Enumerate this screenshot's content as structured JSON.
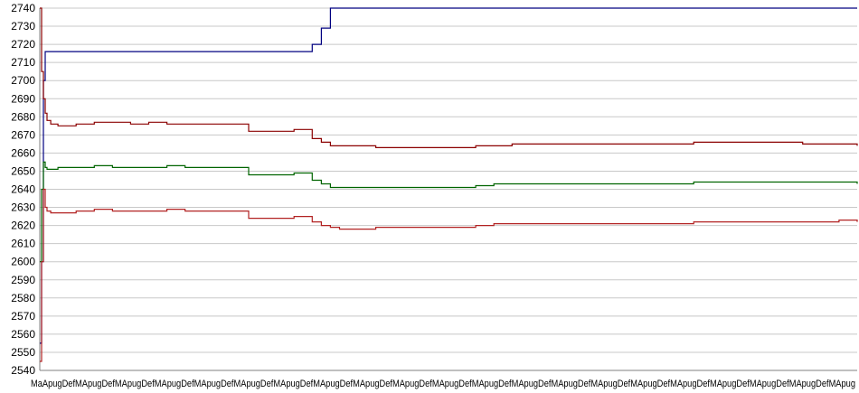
{
  "chart_data": {
    "type": "line",
    "title": "",
    "xlabel": "",
    "ylabel": "",
    "ylim": [
      2540,
      2740
    ],
    "yticks": [
      2540,
      2550,
      2560,
      2570,
      2580,
      2590,
      2600,
      2610,
      2620,
      2630,
      2640,
      2650,
      2660,
      2670,
      2680,
      2690,
      2700,
      2710,
      2720,
      2730,
      2740
    ],
    "grid": "horizontal",
    "legend": "none",
    "xtick_text": "MaApugDefMApugDefMApugDefMApugDefMApugDefMApugDefMApugDefMApugDefMApugDefMApugDefMApugDefMApugDefMApugDefMApugDefMApugDefMApugDefMApugDefMApugDefMApugDefMApugDefMApug",
    "x": [
      0,
      2,
      4,
      6,
      8,
      12,
      20,
      40,
      60,
      80,
      100,
      120,
      140,
      160,
      180,
      200,
      230,
      260,
      280,
      300,
      310,
      320,
      330,
      350,
      370,
      380,
      400,
      430,
      460,
      480,
      500,
      520,
      560,
      600,
      640,
      680,
      720,
      760,
      800,
      840,
      880,
      900
    ],
    "series": [
      {
        "color": "#000080",
        "values": [
          2555,
          2600,
          2700,
          2716,
          2716,
          2716,
          2716,
          2716,
          2716,
          2716,
          2716,
          2716,
          2716,
          2716,
          2716,
          2716,
          2716,
          2716,
          2716,
          2720,
          2729,
          2740,
          2740,
          2740,
          2740,
          2740,
          2740,
          2740,
          2740,
          2740,
          2740,
          2740,
          2740,
          2740,
          2740,
          2740,
          2740,
          2740,
          2740,
          2740,
          2740,
          2740
        ]
      },
      {
        "color": "#8B0000",
        "values": [
          2740,
          2705,
          2690,
          2682,
          2678,
          2676,
          2675,
          2676,
          2677,
          2677,
          2676,
          2677,
          2676,
          2676,
          2676,
          2676,
          2672,
          2672,
          2673,
          2668,
          2666,
          2664,
          2664,
          2664,
          2663,
          2663,
          2663,
          2663,
          2663,
          2664,
          2664,
          2665,
          2665,
          2665,
          2665,
          2665,
          2666,
          2666,
          2666,
          2665,
          2665,
          2664
        ]
      },
      {
        "color": "#006400",
        "values": [
          2600,
          2640,
          2655,
          2652,
          2651,
          2651,
          2652,
          2652,
          2653,
          2652,
          2652,
          2652,
          2653,
          2652,
          2652,
          2652,
          2648,
          2648,
          2649,
          2645,
          2643,
          2641,
          2641,
          2641,
          2641,
          2641,
          2641,
          2641,
          2641,
          2642,
          2643,
          2643,
          2643,
          2643,
          2643,
          2643,
          2644,
          2644,
          2644,
          2644,
          2644,
          2643
        ]
      },
      {
        "color": "#B22222",
        "values": [
          2545,
          2600,
          2640,
          2630,
          2628,
          2627,
          2627,
          2628,
          2629,
          2628,
          2628,
          2628,
          2629,
          2628,
          2628,
          2628,
          2624,
          2624,
          2625,
          2622,
          2620,
          2619,
          2618,
          2618,
          2619,
          2619,
          2619,
          2619,
          2619,
          2620,
          2621,
          2621,
          2621,
          2621,
          2621,
          2621,
          2622,
          2622,
          2622,
          2622,
          2623,
          2622
        ]
      }
    ]
  }
}
